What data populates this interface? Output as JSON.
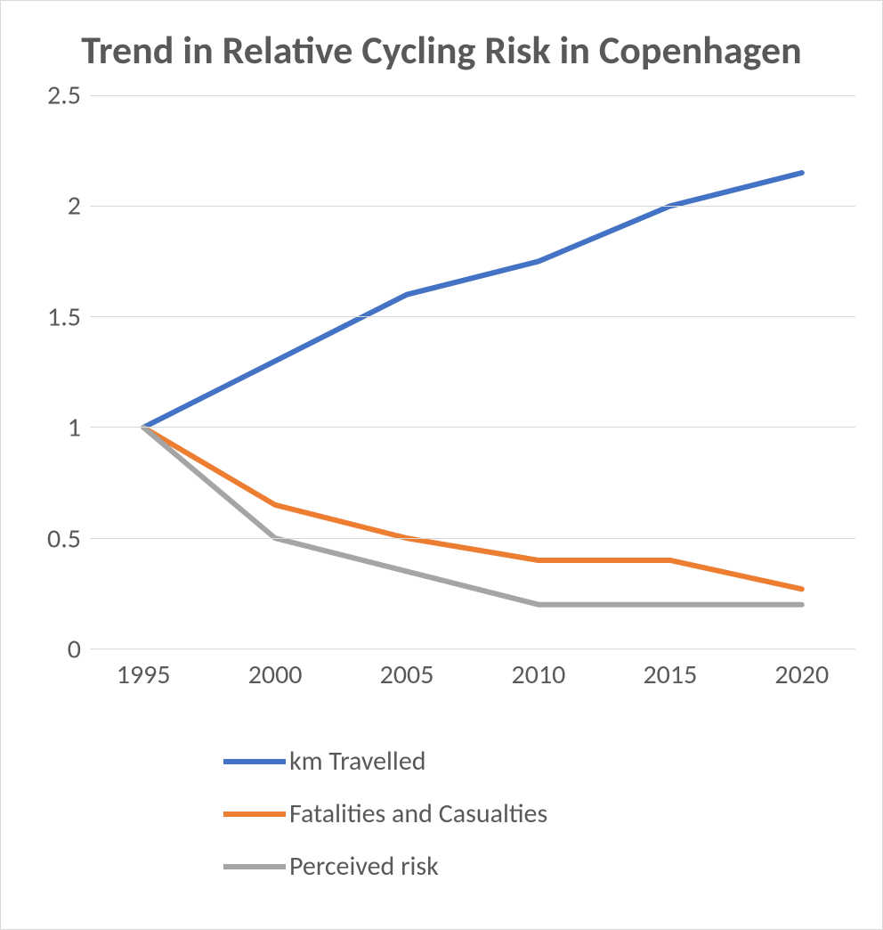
{
  "chart": {
    "type": "line",
    "title": "Trend in Relative Cycling Risk in Copenhagen",
    "title_color": "#595959",
    "title_fontsize": 44,
    "background_color": "#ffffff",
    "border_color": "#d9d9d9",
    "grid_color": "#d9d9d9",
    "axis_label_color": "#595959",
    "axis_label_fontsize": 30,
    "ylim": [
      0,
      2.5
    ],
    "ytick_step": 0.5,
    "yticks": [
      0,
      0.5,
      1,
      1.5,
      2,
      2.5
    ],
    "xticks": [
      1995,
      2000,
      2005,
      2010,
      2015,
      2020
    ],
    "line_width": 6,
    "series": [
      {
        "name": "km Travelled",
        "color": "#4472c4",
        "x": [
          1995,
          2000,
          2005,
          2010,
          2015,
          2020
        ],
        "y": [
          1.0,
          1.3,
          1.6,
          1.75,
          2.0,
          2.15
        ]
      },
      {
        "name": "Fatalities and Casualties",
        "color": "#ed7d31",
        "x": [
          1995,
          2000,
          2005,
          2010,
          2015,
          2020
        ],
        "y": [
          1.0,
          0.65,
          0.5,
          0.4,
          0.4,
          0.27
        ]
      },
      {
        "name": "Perceived risk",
        "color": "#a5a5a5",
        "x": [
          1995,
          2000,
          2005,
          2010,
          2015,
          2020
        ],
        "y": [
          1.0,
          0.5,
          0.35,
          0.2,
          0.2,
          0.2
        ]
      }
    ],
    "legend": {
      "position": "bottom",
      "fontsize": 30,
      "label_color": "#595959",
      "swatch_width": 70,
      "swatch_height": 6
    }
  }
}
